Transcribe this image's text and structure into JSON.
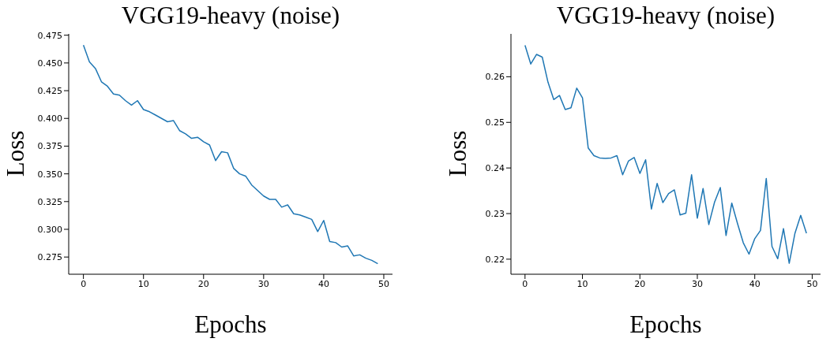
{
  "chart_data": [
    {
      "type": "line",
      "title": "VGG19-heavy (noise)",
      "xlabel": "Epochs",
      "ylabel": "Loss",
      "x": [
        0,
        1,
        2,
        3,
        4,
        5,
        6,
        7,
        8,
        9,
        10,
        11,
        12,
        13,
        14,
        15,
        16,
        17,
        18,
        19,
        20,
        21,
        22,
        23,
        24,
        25,
        26,
        27,
        28,
        29,
        30,
        31,
        32,
        33,
        34,
        35,
        36,
        37,
        38,
        39,
        40,
        41,
        42,
        43,
        44,
        45,
        46,
        47,
        48,
        49
      ],
      "series": [
        {
          "color": "#1f77b4",
          "values": [
            0.466,
            0.451,
            0.445,
            0.433,
            0.429,
            0.422,
            0.421,
            0.416,
            0.412,
            0.416,
            0.408,
            0.406,
            0.403,
            0.4,
            0.397,
            0.398,
            0.389,
            0.386,
            0.382,
            0.383,
            0.379,
            0.376,
            0.362,
            0.37,
            0.369,
            0.355,
            0.35,
            0.348,
            0.34,
            0.335,
            0.33,
            0.327,
            0.327,
            0.32,
            0.322,
            0.314,
            0.313,
            0.311,
            0.309,
            0.298,
            0.308,
            0.289,
            0.288,
            0.284,
            0.285,
            0.276,
            0.277,
            0.274,
            0.272,
            0.269
          ]
        }
      ],
      "xlim": [
        -2.45,
        51.45
      ],
      "xticks": [
        0,
        10,
        20,
        30,
        40,
        50
      ],
      "ylim": [
        0.2595,
        0.4762
      ],
      "yticks": [
        0.275,
        {
          "value": 0.3,
          "label": "0.300"
        },
        0.325,
        {
          "value": 0.35,
          "label": "0.350"
        },
        0.375,
        {
          "value": 0.4,
          "label": "0.400"
        },
        0.425,
        {
          "value": 0.45,
          "label": "0.450"
        },
        0.475
      ],
      "grid": false
    },
    {
      "type": "line",
      "title": "VGG19-heavy (noise)",
      "xlabel": "Epochs",
      "ylabel": "Loss",
      "x": [
        0,
        1,
        2,
        3,
        4,
        5,
        6,
        7,
        8,
        9,
        10,
        11,
        12,
        13,
        14,
        15,
        16,
        17,
        18,
        19,
        20,
        21,
        22,
        23,
        24,
        25,
        26,
        27,
        28,
        29,
        30,
        31,
        32,
        33,
        34,
        35,
        36,
        37,
        38,
        39,
        40,
        41,
        42,
        43,
        44,
        45,
        46,
        47,
        48,
        49
      ],
      "series": [
        {
          "color": "#1f77b4",
          "values": [
            0.2669,
            0.2628,
            0.2649,
            0.2643,
            0.2588,
            0.255,
            0.2559,
            0.2528,
            0.2532,
            0.2575,
            0.2554,
            0.2444,
            0.2427,
            0.2422,
            0.2421,
            0.2422,
            0.2427,
            0.2385,
            0.2415,
            0.2423,
            0.2388,
            0.2418,
            0.231,
            0.2366,
            0.2324,
            0.2344,
            0.2352,
            0.2297,
            0.2301,
            0.2385,
            0.229,
            0.2355,
            0.2276,
            0.2325,
            0.2357,
            0.2252,
            0.2323,
            0.2278,
            0.2236,
            0.2211,
            0.2245,
            0.2263,
            0.2377,
            0.2228,
            0.2201,
            0.2267,
            0.2191,
            0.2257,
            0.2296,
            0.2257
          ]
        }
      ],
      "xlim": [
        -2.45,
        51.45
      ],
      "xticks": [
        0,
        10,
        20,
        30,
        40,
        50
      ],
      "ylim": [
        0.2167,
        0.2694
      ],
      "yticks": [
        0.22,
        0.23,
        0.24,
        0.25,
        0.26
      ],
      "grid": false
    }
  ]
}
